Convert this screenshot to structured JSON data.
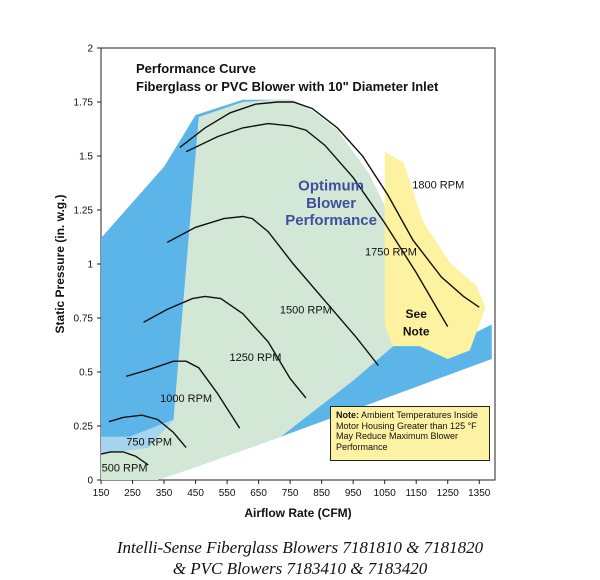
{
  "chart_data": {
    "type": "line",
    "title": "Performance Curve",
    "subtitle": "Fiberglass or PVC Blower with 10\" Diameter Inlet",
    "xlabel": "Airflow Rate (CFM)",
    "ylabel": "Static Pressure (in. w.g.)",
    "xlim": [
      150,
      1400
    ],
    "ylim": [
      0,
      2
    ],
    "xticks": [
      "150",
      "250",
      "350",
      "450",
      "550",
      "650",
      "750",
      "850",
      "950",
      "1050",
      "1150",
      "1250",
      "1350"
    ],
    "yticks": [
      "0",
      "0.25",
      "0.5",
      "0.75",
      "1",
      "1.25",
      "1.5",
      "1.75",
      "2"
    ],
    "grid": false,
    "regions": [
      {
        "name": "Optimum Blower Performance",
        "lines": [
          "Optimum",
          "Blower",
          "Performance"
        ],
        "color": "#d3e7d6"
      },
      {
        "name": "See Note",
        "lines": [
          "See",
          "Note"
        ],
        "color": "#fcf29f"
      }
    ],
    "series": [
      {
        "name": "500 RPM",
        "x": [
          150,
          180,
          220,
          260,
          300
        ],
        "y": [
          0.12,
          0.13,
          0.13,
          0.11,
          0.07
        ]
      },
      {
        "name": "750 RPM",
        "x": [
          175,
          220,
          280,
          330,
          380,
          420
        ],
        "y": [
          0.27,
          0.29,
          0.3,
          0.28,
          0.22,
          0.15
        ]
      },
      {
        "name": "1000 RPM",
        "x": [
          230,
          300,
          380,
          420,
          460,
          520,
          590
        ],
        "y": [
          0.48,
          0.51,
          0.55,
          0.55,
          0.52,
          0.4,
          0.24
        ]
      },
      {
        "name": "1250 RPM",
        "x": [
          285,
          360,
          440,
          480,
          530,
          600,
          680,
          750,
          800
        ],
        "y": [
          0.73,
          0.79,
          0.84,
          0.85,
          0.84,
          0.77,
          0.64,
          0.47,
          0.38
        ]
      },
      {
        "name": "1500 RPM",
        "x": [
          360,
          450,
          540,
          600,
          630,
          680,
          760,
          860,
          960,
          1030
        ],
        "y": [
          1.1,
          1.17,
          1.21,
          1.22,
          1.21,
          1.15,
          1.0,
          0.83,
          0.66,
          0.53
        ]
      },
      {
        "name": "1750 RPM",
        "x": [
          420,
          520,
          600,
          680,
          750,
          800,
          860,
          950,
          1050,
          1150,
          1250
        ],
        "y": [
          1.52,
          1.59,
          1.63,
          1.65,
          1.64,
          1.62,
          1.55,
          1.4,
          1.19,
          0.96,
          0.71
        ]
      },
      {
        "name": "1800 RPM",
        "x": [
          400,
          480,
          560,
          640,
          710,
          760,
          820,
          900,
          980,
          1060,
          1140,
          1230,
          1300,
          1350
        ],
        "y": [
          1.54,
          1.63,
          1.7,
          1.74,
          1.75,
          1.75,
          1.72,
          1.63,
          1.5,
          1.32,
          1.11,
          0.94,
          0.85,
          0.8
        ]
      }
    ],
    "note": {
      "label": "Note:",
      "text": "Ambient Temperatures Inside Motor Housing Greater than 125 °F May Reduce Maximum Blower Performance"
    }
  },
  "caption": {
    "line1": "Intelli-Sense Fiberglass Blowers 7181810 & 7181820",
    "line2": "& PVC Blowers 7183410 & 7183420"
  }
}
